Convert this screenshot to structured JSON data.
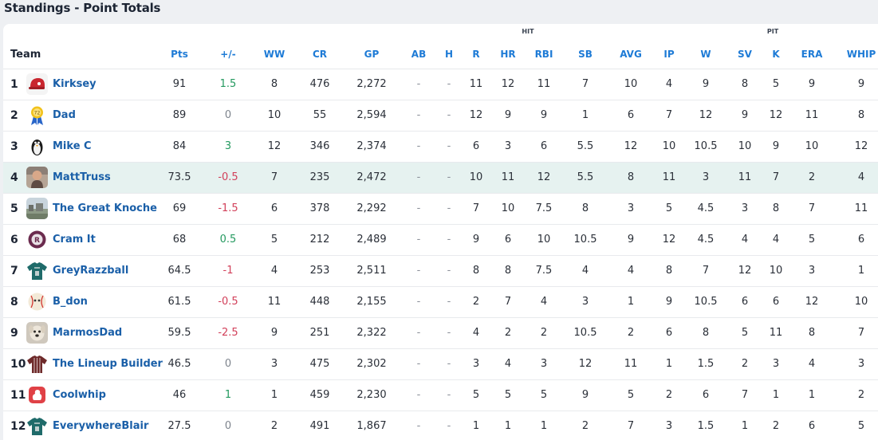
{
  "title": "Standings - Point Totals",
  "groups": {
    "hit": "HIT",
    "pit": "PIT"
  },
  "columns": {
    "team": "Team",
    "pts": "Pts",
    "pm": "+/-",
    "ww": "WW",
    "cr": "CR",
    "gp": "GP",
    "ab": "AB",
    "h": "H",
    "r": "R",
    "hr": "HR",
    "rbi": "RBI",
    "sb": "SB",
    "avg": "AVG",
    "ip": "IP",
    "w": "W",
    "sv": "SV",
    "k": "K",
    "era": "ERA",
    "whip": "WHIP"
  },
  "colors": {
    "link": "#1a5fa8",
    "header": "#1e7bd6",
    "positive": "#24995f",
    "negative": "#d2405a",
    "highlight_row": "#e6f2f0"
  },
  "rows": [
    {
      "rank": "1",
      "team": "Kirksey",
      "avatar": "red-helmet-icon",
      "pts": "91",
      "pm": "1.5",
      "pm_sign": "pos",
      "ww": "8",
      "cr": "476",
      "gp": "2,272",
      "ab": "-",
      "h": "-",
      "r": "11",
      "hr": "12",
      "rbi": "11",
      "sb": "7",
      "avg": "10",
      "ip": "4",
      "w": "9",
      "sv": "8",
      "k": "5",
      "era": "9",
      "whip": "9",
      "highlight": false
    },
    {
      "rank": "2",
      "team": "Dad",
      "avatar": "award-ribbon-icon",
      "pts": "89",
      "pm": "0",
      "pm_sign": "zero",
      "ww": "10",
      "cr": "55",
      "gp": "2,594",
      "ab": "-",
      "h": "-",
      "r": "12",
      "hr": "9",
      "rbi": "9",
      "sb": "1",
      "avg": "6",
      "ip": "7",
      "w": "12",
      "sv": "9",
      "k": "12",
      "era": "11",
      "whip": "8",
      "highlight": false
    },
    {
      "rank": "3",
      "team": "Mike C",
      "avatar": "penguin-icon",
      "pts": "84",
      "pm": "3",
      "pm_sign": "pos",
      "ww": "12",
      "cr": "346",
      "gp": "2,374",
      "ab": "-",
      "h": "-",
      "r": "6",
      "hr": "3",
      "rbi": "6",
      "sb": "5.5",
      "avg": "12",
      "ip": "10",
      "w": "10.5",
      "sv": "10",
      "k": "9",
      "era": "10",
      "whip": "12",
      "highlight": false
    },
    {
      "rank": "4",
      "team": "MattTruss",
      "avatar": "player-photo-icon",
      "pts": "73.5",
      "pm": "-0.5",
      "pm_sign": "neg",
      "ww": "7",
      "cr": "235",
      "gp": "2,472",
      "ab": "-",
      "h": "-",
      "r": "10",
      "hr": "11",
      "rbi": "12",
      "sb": "5.5",
      "avg": "8",
      "ip": "11",
      "w": "3",
      "sv": "11",
      "k": "7",
      "era": "2",
      "whip": "4",
      "highlight": true
    },
    {
      "rank": "5",
      "team": "The Great Knoche",
      "avatar": "landscape-photo-icon",
      "pts": "69",
      "pm": "-1.5",
      "pm_sign": "neg",
      "ww": "6",
      "cr": "378",
      "gp": "2,292",
      "ab": "-",
      "h": "-",
      "r": "7",
      "hr": "10",
      "rbi": "7.5",
      "sb": "8",
      "avg": "3",
      "ip": "5",
      "w": "4.5",
      "sv": "3",
      "k": "8",
      "era": "7",
      "whip": "11",
      "highlight": false
    },
    {
      "rank": "6",
      "team": "Cram It",
      "avatar": "team-logo-icon",
      "pts": "68",
      "pm": "0.5",
      "pm_sign": "pos",
      "ww": "5",
      "cr": "212",
      "gp": "2,489",
      "ab": "-",
      "h": "-",
      "r": "9",
      "hr": "6",
      "rbi": "10",
      "sb": "10.5",
      "avg": "9",
      "ip": "12",
      "w": "4.5",
      "sv": "4",
      "k": "4",
      "era": "5",
      "whip": "6",
      "highlight": false
    },
    {
      "rank": "7",
      "team": "GreyRazzball",
      "avatar": "teal-jersey-icon",
      "pts": "64.5",
      "pm": "-1",
      "pm_sign": "neg",
      "ww": "4",
      "cr": "253",
      "gp": "2,511",
      "ab": "-",
      "h": "-",
      "r": "8",
      "hr": "8",
      "rbi": "7.5",
      "sb": "4",
      "avg": "4",
      "ip": "8",
      "w": "7",
      "sv": "12",
      "k": "10",
      "era": "3",
      "whip": "1",
      "highlight": false
    },
    {
      "rank": "8",
      "team": "B_don",
      "avatar": "baseball-face-icon",
      "pts": "61.5",
      "pm": "-0.5",
      "pm_sign": "neg",
      "ww": "11",
      "cr": "448",
      "gp": "2,155",
      "ab": "-",
      "h": "-",
      "r": "2",
      "hr": "7",
      "rbi": "4",
      "sb": "3",
      "avg": "1",
      "ip": "9",
      "w": "10.5",
      "sv": "6",
      "k": "6",
      "era": "12",
      "whip": "10",
      "highlight": false
    },
    {
      "rank": "9",
      "team": "MarmosDad",
      "avatar": "dog-photo-icon",
      "pts": "59.5",
      "pm": "-2.5",
      "pm_sign": "neg",
      "ww": "9",
      "cr": "251",
      "gp": "2,322",
      "ab": "-",
      "h": "-",
      "r": "4",
      "hr": "2",
      "rbi": "2",
      "sb": "10.5",
      "avg": "2",
      "ip": "6",
      "w": "8",
      "sv": "5",
      "k": "11",
      "era": "8",
      "whip": "7",
      "highlight": false
    },
    {
      "rank": "10",
      "team": "The Lineup Builder",
      "avatar": "maroon-jersey-icon",
      "pts": "46.5",
      "pm": "0",
      "pm_sign": "zero",
      "ww": "3",
      "cr": "475",
      "gp": "2,302",
      "ab": "-",
      "h": "-",
      "r": "3",
      "hr": "4",
      "rbi": "3",
      "sb": "12",
      "avg": "11",
      "ip": "1",
      "w": "1.5",
      "sv": "2",
      "k": "3",
      "era": "4",
      "whip": "3",
      "highlight": false
    },
    {
      "rank": "11",
      "team": "Coolwhip",
      "avatar": "whipped-cream-icon",
      "pts": "46",
      "pm": "1",
      "pm_sign": "pos",
      "ww": "1",
      "cr": "459",
      "gp": "2,230",
      "ab": "-",
      "h": "-",
      "r": "5",
      "hr": "5",
      "rbi": "5",
      "sb": "9",
      "avg": "5",
      "ip": "2",
      "w": "6",
      "sv": "7",
      "k": "1",
      "era": "1",
      "whip": "2",
      "highlight": false
    },
    {
      "rank": "12",
      "team": "EverywhereBlair",
      "avatar": "teal-jersey-icon",
      "pts": "27.5",
      "pm": "0",
      "pm_sign": "zero",
      "ww": "2",
      "cr": "491",
      "gp": "1,867",
      "ab": "-",
      "h": "-",
      "r": "1",
      "hr": "1",
      "rbi": "1",
      "sb": "2",
      "avg": "7",
      "ip": "3",
      "w": "1.5",
      "sv": "1",
      "k": "2",
      "era": "6",
      "whip": "5",
      "highlight": false
    }
  ]
}
